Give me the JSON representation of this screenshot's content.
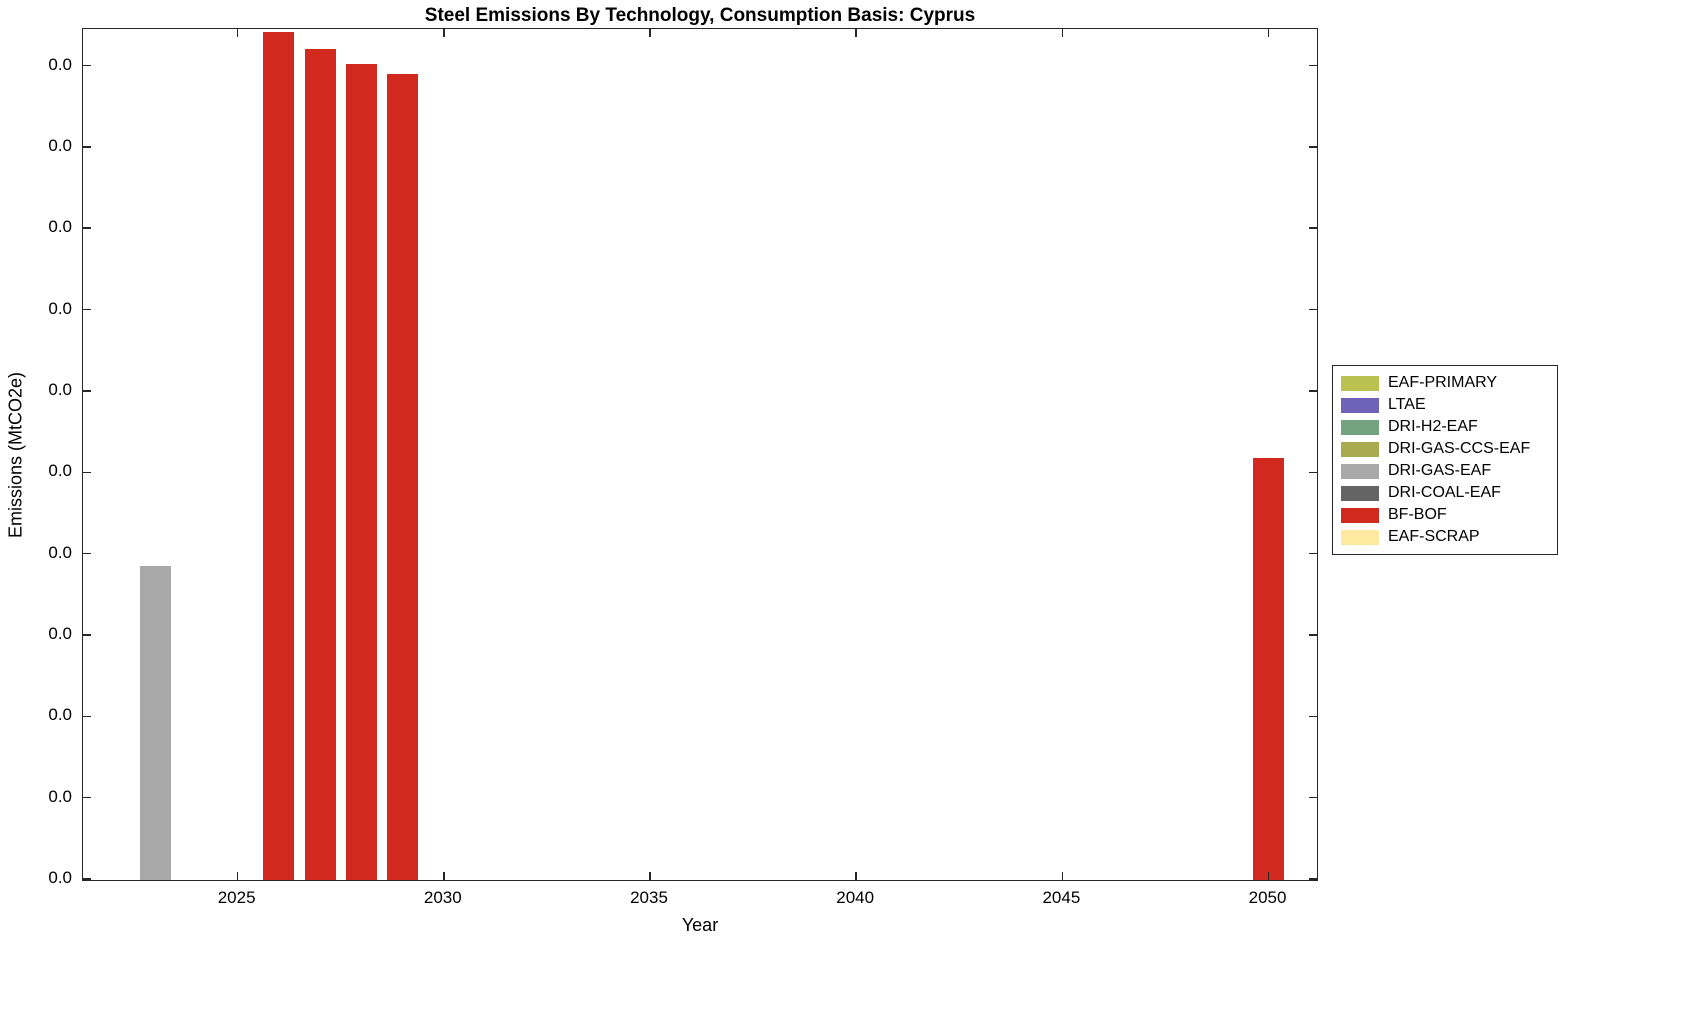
{
  "chart_data": {
    "type": "bar",
    "title": "Steel Emissions By Technology, Consumption Basis: Cyprus",
    "xlabel": "Year",
    "ylabel": "Emissions (MtCO2e)",
    "x_ticks": [
      "2025",
      "2030",
      "2035",
      "2040",
      "2045",
      "2050"
    ],
    "xlim": [
      2021.25,
      2051.15
    ],
    "y_tick_labels": [
      "0.0",
      "0.0",
      "0.0",
      "0.0",
      "0.0",
      "0.0",
      "0.0",
      "0.0",
      "0.0",
      "0.0",
      "0.0"
    ],
    "y_axis_note": "All y-axis tick labels display 0.0 (values below display precision); bar heights recorded as fraction of full y-axis height",
    "grid": false,
    "legend_position": "outside-right",
    "bar_width_years": 0.75,
    "bars": [
      {
        "year": 2023,
        "series": "DRI-GAS-EAF",
        "height_axis_fraction": 0.37
      },
      {
        "year": 2026,
        "series": "BF-BOF",
        "height_axis_fraction": 0.998
      },
      {
        "year": 2027,
        "series": "BF-BOF",
        "height_axis_fraction": 0.978
      },
      {
        "year": 2028,
        "series": "BF-BOF",
        "height_axis_fraction": 0.96
      },
      {
        "year": 2029,
        "series": "BF-BOF",
        "height_axis_fraction": 0.948
      },
      {
        "year": 2050,
        "series": "BF-BOF",
        "height_axis_fraction": 0.497
      }
    ],
    "legend": [
      {
        "label": "EAF-PRIMARY",
        "color": "#b9c24f"
      },
      {
        "label": "LTAE",
        "color": "#6f63b8"
      },
      {
        "label": "DRI-H2-EAF",
        "color": "#74a381"
      },
      {
        "label": "DRI-GAS-CCS-EAF",
        "color": "#a9ab51"
      },
      {
        "label": "DRI-GAS-EAF",
        "color": "#a8a8a8"
      },
      {
        "label": "DRI-COAL-EAF",
        "color": "#646464"
      },
      {
        "label": "BF-BOF",
        "color": "#d2291f"
      },
      {
        "label": "EAF-SCRAP",
        "color": "#ffe9a1"
      }
    ],
    "axis_color": "#262626",
    "background_color": "#ffffff"
  }
}
